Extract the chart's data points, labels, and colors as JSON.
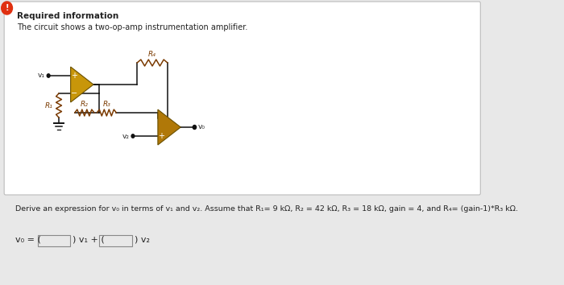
{
  "title": "Required information",
  "subtitle": "The circuit shows a two-op-amp instrumentation amplifier.",
  "bg_color": "#e8e8e8",
  "card_bg": "#ffffff",
  "card_border": "#bbbbbb",
  "warning_dot_color": "#e03010",
  "text_color": "#222222",
  "opamp1_color": "#c8960a",
  "opamp2_color": "#b07808",
  "resistor_color": "#7a3a00",
  "wire_color": "#111111",
  "derive_text": "Derive an expression for v₀ in terms of v₁ and v₂. Assume that R₁= 9 kΩ, R₂ = 42 kΩ, R₃ = 18 kΩ, gain = 4, and R₄= (gain-1)*R₃ kΩ.",
  "label_v1": "v₁",
  "label_v2": "v₂",
  "label_vo": "v₀",
  "label_R1": "R₁",
  "label_R2": "R₂",
  "label_R3": "R₃",
  "label_R4": "R₄",
  "formula_prefix": "v₀ = (",
  "formula_mid": ") v₁ + (",
  "formula_suffix": ") v₂"
}
